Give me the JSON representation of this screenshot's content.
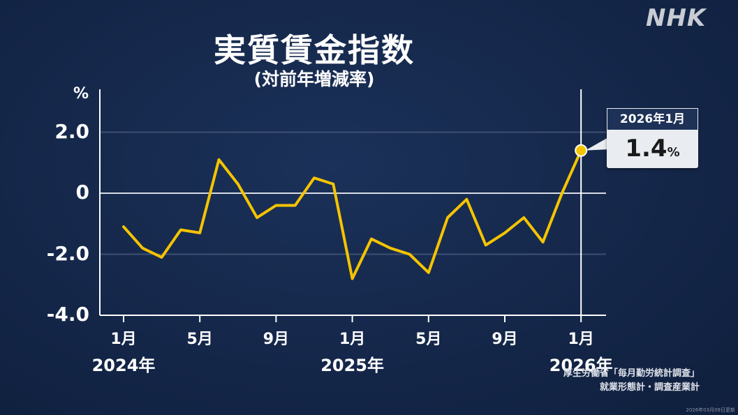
{
  "logo": "NHK",
  "title": "実質賃金指数",
  "subtitle": "(対前年増減率)",
  "callout": {
    "label": "2026年1月",
    "value": "1.4",
    "unit": "%"
  },
  "source": {
    "line1": "厚生労働省「毎月勤労統計調査」",
    "line2": "就業形態計・調査産業計"
  },
  "footer_stamp": "2026年03月09日更新",
  "colors": {
    "background": "#142648",
    "line": "#f5c400",
    "grid": "#ffffff"
  },
  "chart_data": {
    "type": "line",
    "title": "実質賃金指数",
    "subtitle": "(対前年増減率)",
    "yunit": "%",
    "ylim": [
      -4.0,
      3.0
    ],
    "y_ticks": [
      "2.0",
      "0",
      "-2.0",
      "-4.0"
    ],
    "y_tick_values": [
      2.0,
      0,
      -2.0,
      -4.0
    ],
    "x": [
      "2024-01",
      "2024-02",
      "2024-03",
      "2024-04",
      "2024-05",
      "2024-06",
      "2024-07",
      "2024-08",
      "2024-09",
      "2024-10",
      "2024-11",
      "2024-12",
      "2025-01",
      "2025-02",
      "2025-03",
      "2025-04",
      "2025-05",
      "2025-06",
      "2025-07",
      "2025-08",
      "2025-09",
      "2025-10",
      "2025-11",
      "2025-12",
      "2026-01"
    ],
    "x_ticks": [
      {
        "month": "1月",
        "year": "2024年",
        "index": 0
      },
      {
        "month": "5月",
        "year": "",
        "index": 4
      },
      {
        "month": "9月",
        "year": "",
        "index": 8
      },
      {
        "month": "1月",
        "year": "2025年",
        "index": 12
      },
      {
        "month": "5月",
        "year": "",
        "index": 16
      },
      {
        "month": "9月",
        "year": "",
        "index": 20
      },
      {
        "month": "1月",
        "year": "2026年",
        "index": 24
      }
    ],
    "series": [
      {
        "values": [
          -1.1,
          -1.8,
          -2.1,
          -1.2,
          -1.3,
          1.1,
          0.3,
          -0.8,
          -0.4,
          -0.4,
          0.5,
          0.3,
          -2.8,
          -1.5,
          -1.8,
          -2.0,
          -2.6,
          -0.8,
          -0.2,
          -1.7,
          -1.3,
          -0.8,
          -1.6,
          0.0,
          1.4
        ]
      }
    ],
    "highlight": {
      "index": 24,
      "value": 1.4
    },
    "grid": true
  }
}
